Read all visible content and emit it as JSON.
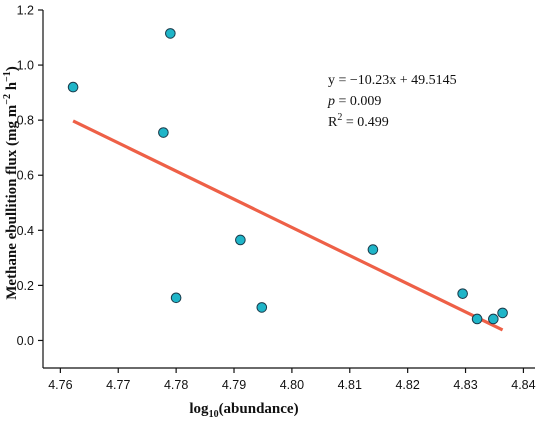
{
  "chart_data": {
    "type": "scatter",
    "title": "",
    "xlabel": {
      "pre": "log",
      "sub": "10",
      "post": "(abundance)"
    },
    "ylabel": {
      "pre": "Methane ebullition flux (mg m",
      "sup1": "−2",
      "mid": " h",
      "sup2": "−1",
      "post": ")"
    },
    "xlim": [
      4.757,
      4.842
    ],
    "ylim": [
      -0.1,
      1.2
    ],
    "xticks": [
      4.76,
      4.77,
      4.78,
      4.79,
      4.8,
      4.81,
      4.82,
      4.83,
      4.84
    ],
    "xtick_labels": [
      "4.76",
      "4.77",
      "4.78",
      "4.79",
      "4.80",
      "4.81",
      "4.82",
      "4.83",
      "4.84"
    ],
    "yticks": [
      0.0,
      0.2,
      0.4,
      0.6,
      0.8,
      1.0,
      1.2
    ],
    "ytick_labels": [
      "0.0",
      "0.2",
      "0.4",
      "0.6",
      "0.8",
      "1.0",
      "1.2"
    ],
    "grid": false,
    "points": [
      {
        "x": 4.7622,
        "y": 0.92
      },
      {
        "x": 4.779,
        "y": 1.115
      },
      {
        "x": 4.7778,
        "y": 0.755
      },
      {
        "x": 4.78,
        "y": 0.155
      },
      {
        "x": 4.7911,
        "y": 0.365
      },
      {
        "x": 4.7948,
        "y": 0.12
      },
      {
        "x": 4.814,
        "y": 0.33
      },
      {
        "x": 4.8295,
        "y": 0.17
      },
      {
        "x": 4.832,
        "y": 0.078
      },
      {
        "x": 4.8348,
        "y": 0.078
      },
      {
        "x": 4.8364,
        "y": 0.1
      }
    ],
    "fit_line": {
      "slope": -10.23,
      "intercept": 49.5145,
      "x_range": [
        4.7622,
        4.8364
      ]
    },
    "annotations": {
      "equation": "y = −10.23x + 49.5145",
      "p_label": "p",
      "p_value": " = 0.009",
      "r2_label": "R",
      "r2_sup": "2",
      "r2_value": " = 0.499"
    },
    "colors": {
      "marker_fill": "#1fb5c8",
      "marker_edge": "#1a3a4a",
      "fit_line": "#ee6047",
      "axis": "#111111"
    }
  }
}
